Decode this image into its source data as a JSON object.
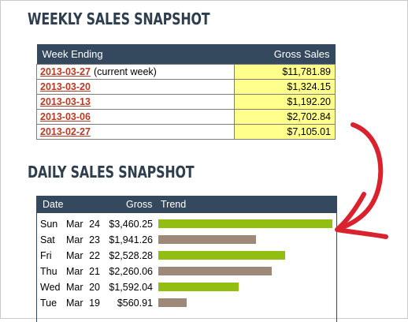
{
  "weekly": {
    "title": "WEEKLY SALES SNAPSHOT",
    "col_week": "Week Ending",
    "col_sales": "Gross Sales",
    "rows": [
      {
        "week": "2013-03-27",
        "note": "(current week)",
        "sales": "$11,781.89"
      },
      {
        "week": "2013-03-20",
        "note": "",
        "sales": "$1,324.15"
      },
      {
        "week": "2013-03-13",
        "note": "",
        "sales": "$1,192.20"
      },
      {
        "week": "2013-03-06",
        "note": "",
        "sales": "$2,702.84"
      },
      {
        "week": "2013-02-27",
        "note": "",
        "sales": "$7,105.01"
      }
    ]
  },
  "daily": {
    "title": "DAILY SALES SNAPSHOT",
    "col_date": "Date",
    "col_gross": "Gross",
    "col_trend": "Trend",
    "rows": [
      {
        "day": "Sun",
        "month": "Mar",
        "date": "24",
        "gross": "$3,460.25",
        "value": 3460.25,
        "color": "#92be11"
      },
      {
        "day": "Sat",
        "month": "Mar",
        "date": "23",
        "gross": "$1,941.26",
        "value": 1941.26,
        "color": "#9e8878"
      },
      {
        "day": "Fri",
        "month": "Mar",
        "date": "22",
        "gross": "$2,528.28",
        "value": 2528.28,
        "color": "#92be11"
      },
      {
        "day": "Thu",
        "month": "Mar",
        "date": "21",
        "gross": "$2,260.06",
        "value": 2260.06,
        "color": "#9e8878"
      },
      {
        "day": "Wed",
        "month": "Mar",
        "date": "20",
        "gross": "$1,592.04",
        "value": 1592.04,
        "color": "#92be11"
      },
      {
        "day": "Tue",
        "month": "Mar",
        "date": "19",
        "gross": "$560.91",
        "value": 560.91,
        "color": "#9e8878"
      }
    ]
  },
  "colors": {
    "header_bg": "#34495e",
    "heading_text": "#2e3e4c",
    "sales_cell_bg": "#ffff8c",
    "link": "#b83a24",
    "arrow": "#d9222e"
  },
  "icons": [
    "curved-arrow-icon"
  ]
}
